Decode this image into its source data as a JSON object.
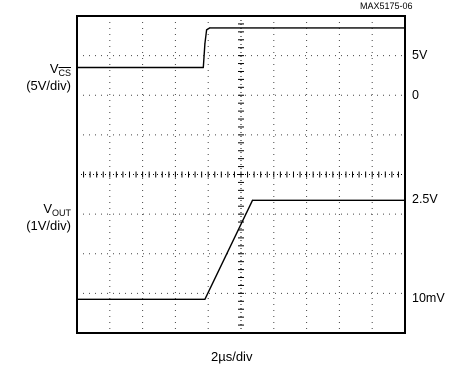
{
  "figure_id": "MAX5175-06",
  "time_scale": "2µs/div",
  "channels": [
    {
      "name_main": "V",
      "name_sub": "CS",
      "scale": "(5V/div)",
      "ref_top": "5V",
      "ref_bottom": "0"
    },
    {
      "name_main": "V",
      "name_sub": "OUT",
      "scale": "(1V/div)",
      "ref_top": "2.5V",
      "ref_bottom": "10mV"
    }
  ],
  "chart_data": {
    "type": "line",
    "x_unit": "div",
    "y_unit": "div",
    "grid": true,
    "xlim": [
      0,
      10
    ],
    "ylim": [
      0,
      8
    ],
    "series": [
      {
        "name": "VCS",
        "x": [
          0,
          3.85,
          3.9,
          3.95,
          4.05,
          10
        ],
        "y": [
          6.7,
          6.7,
          7.3,
          7.65,
          7.7,
          7.7
        ]
      },
      {
        "name": "VOUT",
        "x": [
          0,
          3.9,
          5.35,
          10
        ],
        "y": [
          0.85,
          0.85,
          3.35,
          3.35
        ]
      }
    ]
  }
}
